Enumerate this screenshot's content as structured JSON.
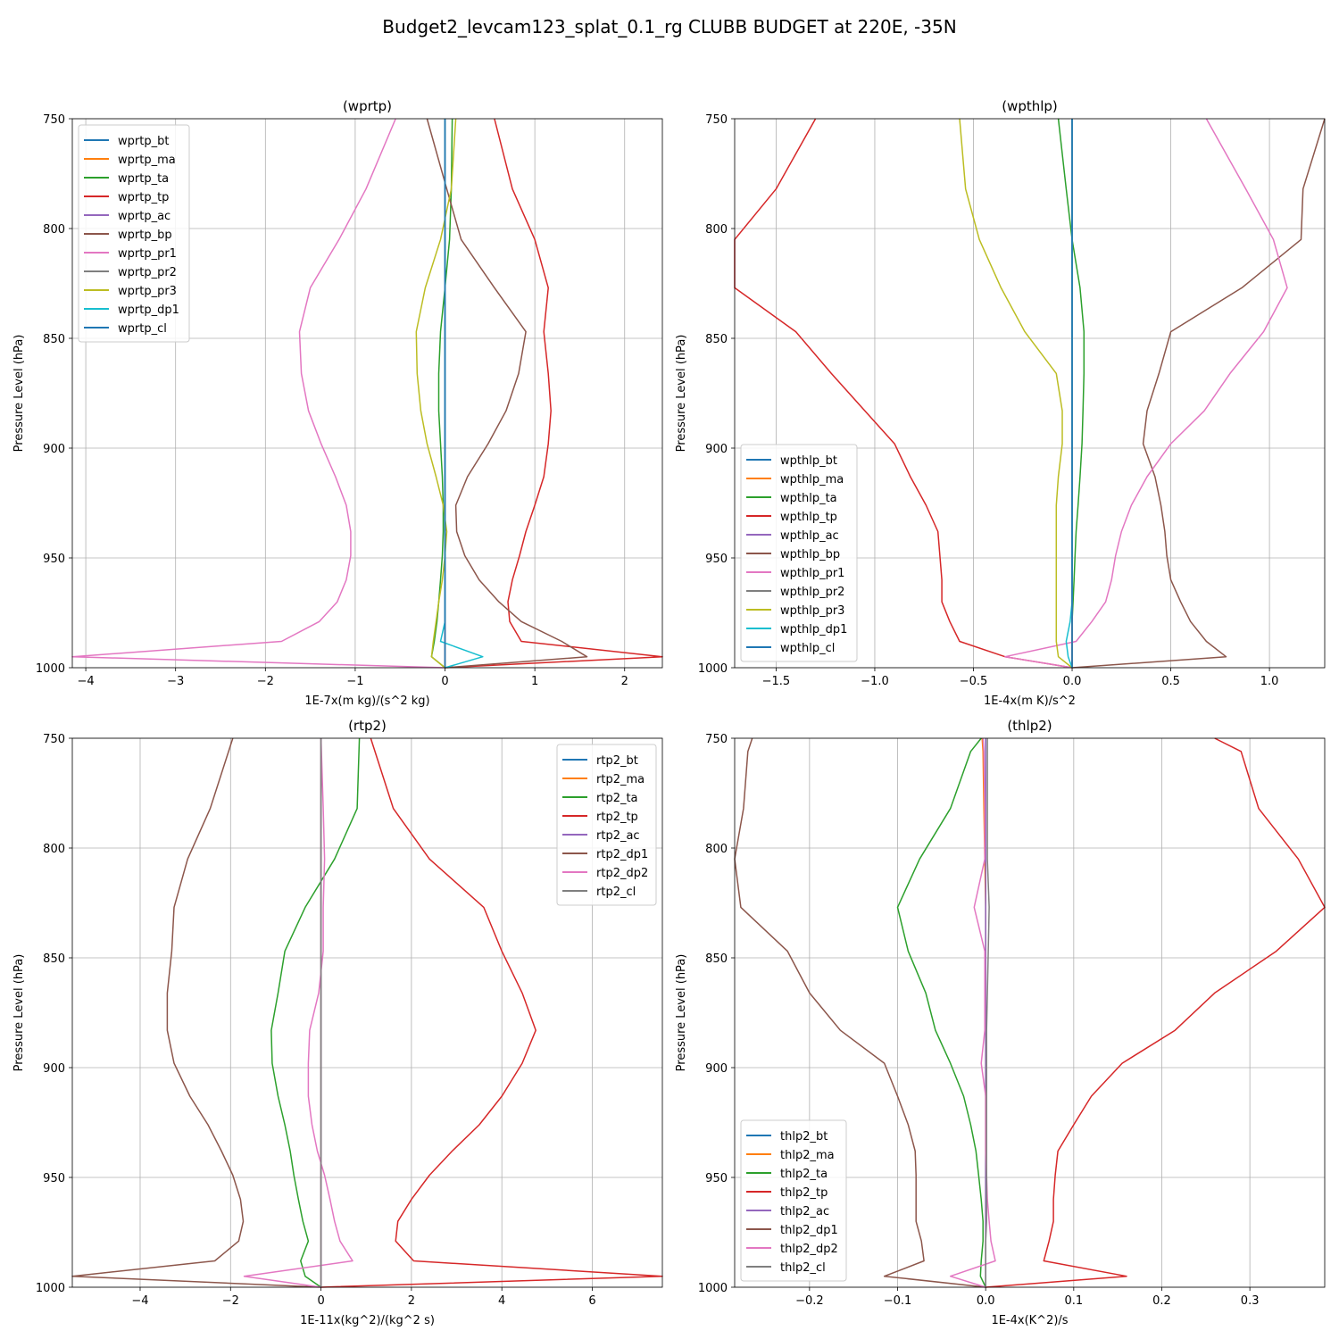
{
  "suptitle": "Budget2_levcam123_splat_0.1_rg CLUBB BUDGET at 220E, -35N",
  "colors": [
    "#1f77b4",
    "#ff7f0e",
    "#2ca02c",
    "#d62728",
    "#9467bd",
    "#8c564b",
    "#e377c2",
    "#7f7f7f",
    "#bcbd22",
    "#17becf",
    "#1f77b4"
  ],
  "chart_data": [
    {
      "type": "line",
      "title": "(wprtp)",
      "xlabel": "1E-7x(m kg)/(s^2 kg)",
      "ylabel": "Pressure Level (hPa)",
      "xlim": [
        -4.15,
        2.42
      ],
      "ylim": [
        1000,
        750
      ],
      "xticks": [
        -4,
        -3,
        -2,
        -1,
        0,
        1,
        2
      ],
      "xtick_labels": [
        "−4",
        "−3",
        "−2",
        "−1",
        "0",
        "1",
        "2"
      ],
      "yticks": [
        750,
        800,
        850,
        900,
        950,
        1000
      ],
      "ytick_labels": [
        "750",
        "800",
        "850",
        "900",
        "950",
        "1000"
      ],
      "grid": true,
      "legend": "upper left",
      "levels": [
        750,
        782,
        805,
        827,
        847,
        866,
        883,
        898,
        913,
        926,
        938,
        949,
        960,
        970,
        979,
        988,
        995,
        1000
      ],
      "series": [
        {
          "name": "wprtp_bt",
          "values": [
            0,
            0,
            0,
            0,
            0,
            0,
            0,
            0,
            0,
            0,
            0,
            0,
            0,
            0,
            0,
            0,
            0,
            0
          ]
        },
        {
          "name": "wprtp_ma",
          "values": [
            0,
            0,
            0,
            0,
            0,
            0,
            0,
            0,
            0,
            0,
            0,
            0,
            0,
            0,
            0,
            0,
            0,
            0
          ]
        },
        {
          "name": "wprtp_ta",
          "values": [
            0.08,
            0.07,
            0.05,
            0.0,
            -0.05,
            -0.07,
            -0.07,
            -0.05,
            -0.03,
            -0.02,
            -0.02,
            -0.03,
            -0.05,
            -0.07,
            -0.09,
            -0.12,
            -0.15,
            0
          ]
        },
        {
          "name": "wprtp_tp",
          "values": [
            0.55,
            0.75,
            1.0,
            1.15,
            1.1,
            1.15,
            1.18,
            1.15,
            1.1,
            1.0,
            0.9,
            0.83,
            0.75,
            0.7,
            0.72,
            0.85,
            2.42,
            0
          ]
        },
        {
          "name": "wprtp_ac",
          "values": [
            0,
            0,
            0,
            0,
            0,
            0,
            0,
            0,
            0,
            0,
            0,
            0,
            0,
            0,
            0,
            0,
            0,
            0
          ]
        },
        {
          "name": "wprtp_bp",
          "values": [
            -0.2,
            0.02,
            0.18,
            0.55,
            0.9,
            0.82,
            0.68,
            0.48,
            0.25,
            0.12,
            0.13,
            0.22,
            0.38,
            0.6,
            0.85,
            1.3,
            1.58,
            0
          ]
        },
        {
          "name": "wprtp_pr1",
          "values": [
            -0.55,
            -0.88,
            -1.18,
            -1.5,
            -1.62,
            -1.6,
            -1.52,
            -1.38,
            -1.22,
            -1.1,
            -1.05,
            -1.05,
            -1.1,
            -1.2,
            -1.4,
            -1.82,
            -4.15,
            0
          ]
        },
        {
          "name": "wprtp_pr2",
          "values": [
            0,
            0,
            0,
            0,
            0,
            0,
            0,
            0,
            0,
            0,
            0,
            0,
            0,
            0,
            0,
            0,
            0,
            0
          ]
        },
        {
          "name": "wprtp_pr3",
          "values": [
            0.12,
            0.07,
            -0.05,
            -0.22,
            -0.32,
            -0.31,
            -0.27,
            -0.2,
            -0.1,
            -0.02,
            0.02,
            0.0,
            -0.03,
            -0.07,
            -0.1,
            -0.13,
            -0.15,
            0
          ]
        },
        {
          "name": "wprtp_dp1",
          "values": [
            0,
            0,
            0,
            0,
            0,
            0,
            0,
            0,
            0,
            0,
            0,
            0,
            0,
            0,
            0,
            -0.05,
            0.42,
            0
          ]
        },
        {
          "name": "wprtp_cl",
          "values": [
            0,
            0,
            0,
            0,
            0,
            0,
            0,
            0,
            0,
            0,
            0,
            0,
            0,
            0,
            0,
            0,
            0,
            0
          ]
        }
      ]
    },
    {
      "type": "line",
      "title": "(wpthlp)",
      "xlabel": "1E-4x(m K)/s^2",
      "ylabel": "Pressure Level (hPa)",
      "xlim": [
        -1.71,
        1.28
      ],
      "ylim": [
        1000,
        750
      ],
      "xticks": [
        -1.5,
        -1.0,
        -0.5,
        0.0,
        0.5,
        1.0
      ],
      "xtick_labels": [
        "−1.5",
        "−1.0",
        "−0.5",
        "0.0",
        "0.5",
        "1.0"
      ],
      "yticks": [
        750,
        800,
        850,
        900,
        950,
        1000
      ],
      "ytick_labels": [
        "750",
        "800",
        "850",
        "900",
        "950",
        "1000"
      ],
      "grid": true,
      "legend": "lower left",
      "levels": [
        750,
        782,
        805,
        827,
        847,
        866,
        883,
        898,
        913,
        926,
        938,
        949,
        960,
        970,
        979,
        988,
        995,
        1000
      ],
      "series": [
        {
          "name": "wpthlp_bt",
          "values": [
            0,
            0,
            0,
            0,
            0,
            0,
            0,
            0,
            0,
            0,
            0,
            0,
            0,
            0,
            0,
            0,
            0,
            0
          ]
        },
        {
          "name": "wpthlp_ma",
          "values": [
            0,
            0,
            0,
            0,
            0,
            0,
            0,
            0,
            0,
            0,
            0,
            0,
            0,
            0,
            0,
            0,
            0,
            0
          ]
        },
        {
          "name": "wpthlp_ta",
          "values": [
            -0.07,
            -0.03,
            0.0,
            0.04,
            0.06,
            0.06,
            0.055,
            0.05,
            0.04,
            0.03,
            0.02,
            0.015,
            0.01,
            0.005,
            0.0,
            0.0,
            0.0,
            0
          ]
        },
        {
          "name": "wpthlp_tp",
          "values": [
            -1.3,
            -1.5,
            -1.71,
            -1.71,
            -1.4,
            -1.22,
            -1.05,
            -0.9,
            -0.82,
            -0.74,
            -0.68,
            -0.67,
            -0.66,
            -0.66,
            -0.62,
            -0.57,
            -0.34,
            0
          ]
        },
        {
          "name": "wpthlp_ac",
          "values": [
            0,
            0,
            0,
            0,
            0,
            0,
            0,
            0,
            0,
            0,
            0,
            0,
            0,
            0,
            0,
            0,
            0,
            0
          ]
        },
        {
          "name": "wpthlp_bp",
          "values": [
            1.28,
            1.17,
            1.16,
            0.86,
            0.5,
            0.44,
            0.38,
            0.36,
            0.42,
            0.45,
            0.47,
            0.48,
            0.5,
            0.55,
            0.6,
            0.68,
            0.78,
            0
          ]
        },
        {
          "name": "wpthlp_pr1",
          "values": [
            0.68,
            0.88,
            1.02,
            1.09,
            0.97,
            0.8,
            0.67,
            0.5,
            0.38,
            0.3,
            0.25,
            0.22,
            0.2,
            0.17,
            0.1,
            0.02,
            -0.34,
            0
          ]
        },
        {
          "name": "wpthlp_pr2",
          "values": [
            0,
            0,
            0,
            0,
            0,
            0,
            0,
            0,
            0,
            0,
            0,
            0,
            0,
            0,
            0,
            0,
            0,
            0
          ]
        },
        {
          "name": "wpthlp_pr3",
          "values": [
            -0.57,
            -0.54,
            -0.47,
            -0.36,
            -0.24,
            -0.08,
            -0.05,
            -0.05,
            -0.07,
            -0.08,
            -0.08,
            -0.08,
            -0.08,
            -0.08,
            -0.08,
            -0.08,
            -0.07,
            0
          ]
        },
        {
          "name": "wpthlp_dp1",
          "values": [
            0,
            0,
            0,
            0,
            0,
            0,
            0,
            0,
            0,
            0,
            0,
            0,
            0,
            0,
            -0.01,
            -0.03,
            -0.02,
            0
          ]
        },
        {
          "name": "wpthlp_cl",
          "values": [
            0,
            0,
            0,
            0,
            0,
            0,
            0,
            0,
            0,
            0,
            0,
            0,
            0,
            0,
            0,
            0,
            0,
            0
          ]
        }
      ]
    },
    {
      "type": "line",
      "title": "(rtp2)",
      "xlabel": "1E-11x(kg^2)/(kg^2 s)",
      "ylabel": "Pressure Level (hPa)",
      "xlim": [
        -5.5,
        7.55
      ],
      "ylim": [
        1000,
        750
      ],
      "xticks": [
        -4,
        -2,
        0,
        2,
        4,
        6
      ],
      "xtick_labels": [
        "−4",
        "−2",
        "0",
        "2",
        "4",
        "6"
      ],
      "yticks": [
        750,
        800,
        850,
        900,
        950,
        1000
      ],
      "ytick_labels": [
        "750",
        "800",
        "850",
        "900",
        "950",
        "1000"
      ],
      "grid": true,
      "legend": "upper right",
      "levels": [
        750,
        782,
        805,
        827,
        847,
        866,
        883,
        898,
        913,
        926,
        938,
        949,
        960,
        970,
        979,
        988,
        995,
        1000
      ],
      "series": [
        {
          "name": "rtp2_bt",
          "values": [
            0,
            0,
            0,
            0,
            0,
            0,
            0,
            0,
            0,
            0,
            0,
            0,
            0,
            0,
            0,
            0,
            0,
            0
          ]
        },
        {
          "name": "rtp2_ma",
          "values": [
            0,
            0,
            0,
            0,
            0,
            0,
            0,
            0,
            0,
            0,
            0,
            0,
            0,
            0,
            0,
            0,
            0,
            0
          ]
        },
        {
          "name": "rtp2_ta",
          "values": [
            0.85,
            0.8,
            0.3,
            -0.35,
            -0.8,
            -0.95,
            -1.1,
            -1.08,
            -0.95,
            -0.8,
            -0.68,
            -0.6,
            -0.5,
            -0.4,
            -0.28,
            -0.45,
            -0.35,
            0
          ]
        },
        {
          "name": "rtp2_tp",
          "values": [
            1.1,
            1.6,
            2.4,
            3.6,
            4.0,
            4.45,
            4.75,
            4.45,
            4.0,
            3.5,
            2.9,
            2.4,
            2.0,
            1.7,
            1.65,
            2.05,
            7.55,
            0
          ]
        },
        {
          "name": "rtp2_ac",
          "values": [
            0,
            0,
            0,
            0,
            0,
            0,
            0,
            0,
            0,
            0,
            0,
            0,
            0,
            0,
            0,
            0,
            0,
            0
          ]
        },
        {
          "name": "rtp2_dp1",
          "values": [
            -1.95,
            -2.45,
            -2.95,
            -3.25,
            -3.3,
            -3.4,
            -3.4,
            -3.25,
            -2.9,
            -2.5,
            -2.2,
            -1.95,
            -1.78,
            -1.72,
            -1.82,
            -2.35,
            -5.5,
            0
          ]
        },
        {
          "name": "rtp2_dp2",
          "values": [
            0,
            0.05,
            0.08,
            0.05,
            0.05,
            -0.05,
            -0.25,
            -0.28,
            -0.28,
            -0.2,
            -0.08,
            0.08,
            0.2,
            0.3,
            0.42,
            0.7,
            -1.7,
            0
          ]
        },
        {
          "name": "rtp2_cl",
          "values": [
            0,
            0,
            0,
            0,
            0,
            0,
            0,
            0,
            0,
            0,
            0,
            0,
            0,
            0,
            0,
            0,
            0,
            0
          ]
        }
      ]
    },
    {
      "type": "line",
      "title": "(thlp2)",
      "xlabel": "1E-4x(K^2)/s",
      "ylabel": "Pressure Level (hPa)",
      "xlim": [
        -0.285,
        0.385
      ],
      "ylim": [
        1000,
        750
      ],
      "xticks": [
        -0.2,
        -0.1,
        0.0,
        0.1,
        0.2,
        0.3
      ],
      "xtick_labels": [
        "−0.2",
        "−0.1",
        "0.0",
        "0.1",
        "0.2",
        "0.3"
      ],
      "yticks": [
        750,
        800,
        850,
        900,
        950,
        1000
      ],
      "ytick_labels": [
        "750",
        "800",
        "850",
        "900",
        "950",
        "1000"
      ],
      "grid": true,
      "legend": "lower left",
      "levels": [
        750,
        756,
        782,
        805,
        827,
        847,
        866,
        883,
        898,
        913,
        926,
        938,
        949,
        960,
        970,
        979,
        988,
        995,
        1000
      ],
      "series": [
        {
          "name": "thlp2_bt",
          "values": [
            0,
            0,
            0,
            0,
            0,
            0,
            0,
            0,
            0,
            0,
            0,
            0,
            0,
            0,
            0,
            0,
            0,
            0,
            0
          ]
        },
        {
          "name": "thlp2_ma",
          "values": [
            -0.004,
            -0.003,
            -0.002,
            -0.001,
            0,
            0,
            0,
            0,
            0,
            0,
            0,
            0,
            0,
            0,
            0,
            0,
            0,
            0,
            0
          ]
        },
        {
          "name": "thlp2_ta",
          "values": [
            -0.005,
            -0.017,
            -0.04,
            -0.075,
            -0.1,
            -0.088,
            -0.068,
            -0.057,
            -0.04,
            -0.025,
            -0.017,
            -0.011,
            -0.008,
            -0.005,
            -0.003,
            -0.003,
            -0.005,
            -0.006,
            0
          ]
        },
        {
          "name": "thlp2_tp",
          "values": [
            0.26,
            0.29,
            0.31,
            0.355,
            0.385,
            0.33,
            0.26,
            0.215,
            0.155,
            0.12,
            0.1,
            0.082,
            0.079,
            0.077,
            0.077,
            0.072,
            0.066,
            0.16,
            0
          ]
        },
        {
          "name": "thlp2_ac",
          "values": [
            0,
            0,
            0,
            0,
            0,
            0,
            0,
            0,
            0,
            0,
            0,
            0,
            0,
            0,
            0,
            0,
            0,
            0,
            0
          ]
        },
        {
          "name": "thlp2_dp1",
          "values": [
            -0.265,
            -0.27,
            -0.275,
            -0.285,
            -0.278,
            -0.225,
            -0.2,
            -0.165,
            -0.115,
            -0.1,
            -0.088,
            -0.08,
            -0.079,
            -0.079,
            -0.079,
            -0.073,
            -0.07,
            -0.115,
            0
          ]
        },
        {
          "name": "thlp2_dp2",
          "values": [
            -0.003,
            -0.002,
            -0.001,
            -0.001,
            -0.013,
            -0.001,
            -0.001,
            -0.001,
            -0.005,
            0,
            0,
            0,
            0.001,
            0.002,
            0.004,
            0.006,
            0.011,
            -0.04,
            0
          ]
        },
        {
          "name": "thlp2_cl",
          "values": [
            0.002,
            0.002,
            0.002,
            0.002,
            0.004,
            0.003,
            0.002,
            0.001,
            0.001,
            0.001,
            0.001,
            0.001,
            0.001,
            0.001,
            0.001,
            0,
            0,
            0,
            0
          ]
        }
      ]
    }
  ]
}
